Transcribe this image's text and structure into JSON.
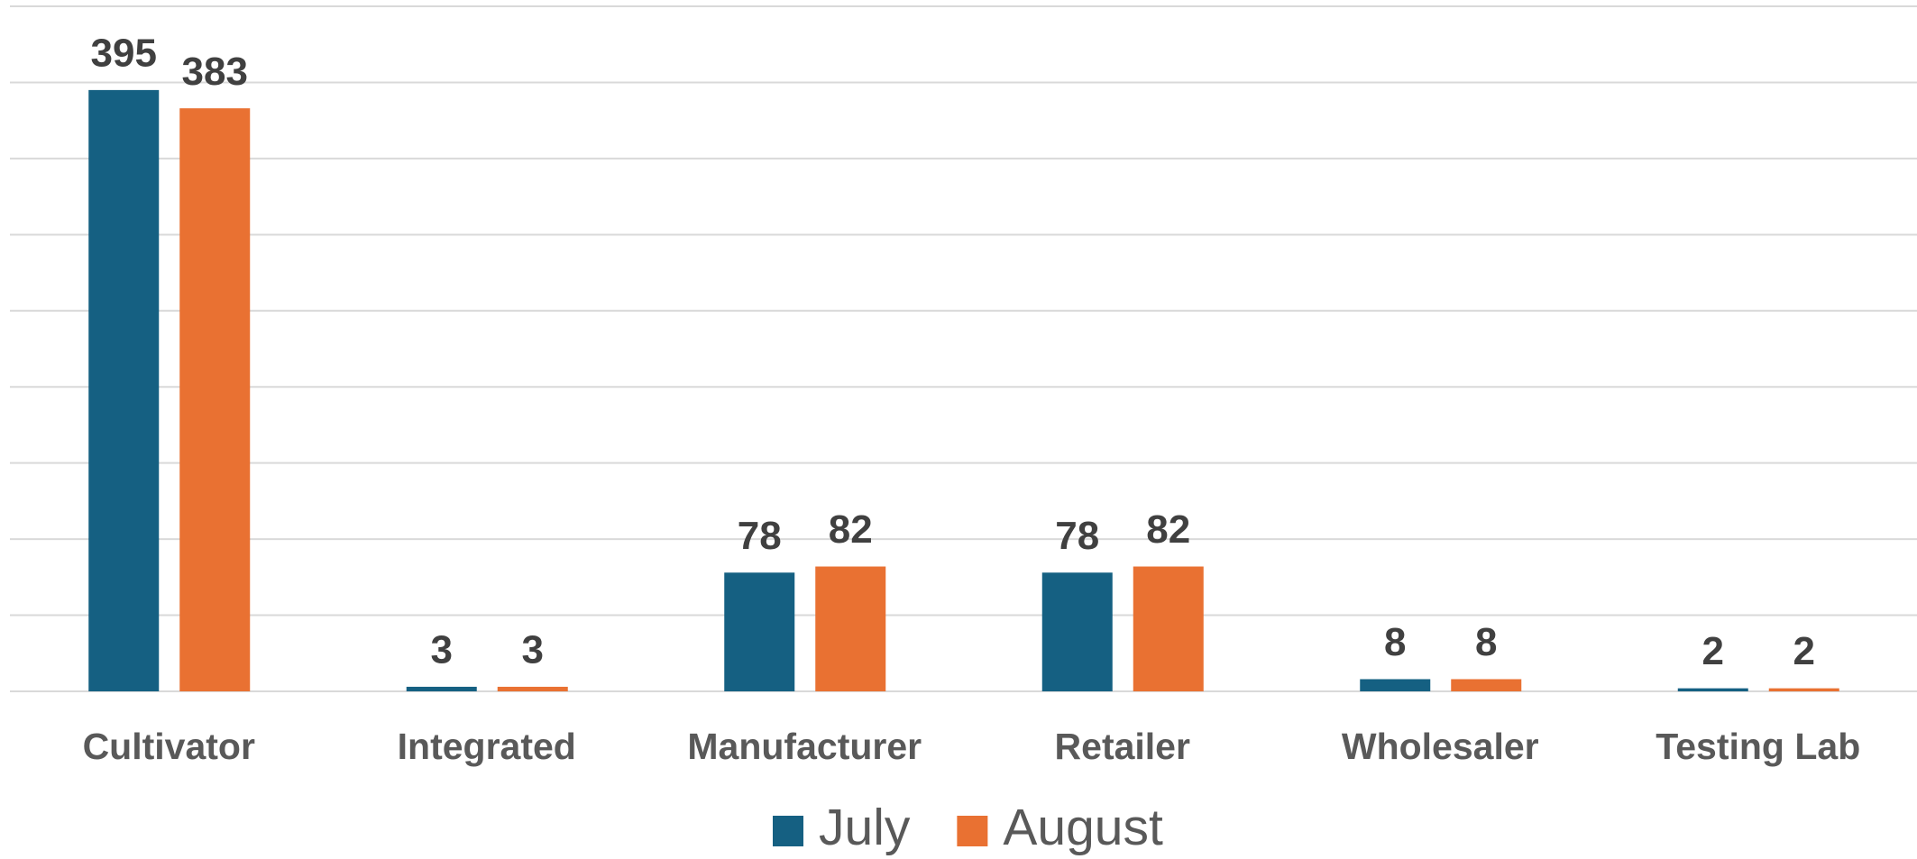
{
  "chart_data": {
    "type": "bar",
    "categories": [
      "Cultivator",
      "Integrated",
      "Manufacturer",
      "Retailer",
      "Wholesaler",
      "Testing Lab"
    ],
    "series": [
      {
        "name": "July",
        "color": "#156082",
        "values": [
          395,
          3,
          78,
          78,
          8,
          2
        ]
      },
      {
        "name": "August",
        "color": "#e97132",
        "values": [
          383,
          3,
          82,
          82,
          8,
          2
        ]
      }
    ],
    "ylim": [
      0,
      450
    ],
    "yticks": [
      0,
      50,
      100,
      150,
      200,
      250,
      300,
      350,
      400,
      450
    ],
    "grid": true,
    "legend": "bottom"
  }
}
